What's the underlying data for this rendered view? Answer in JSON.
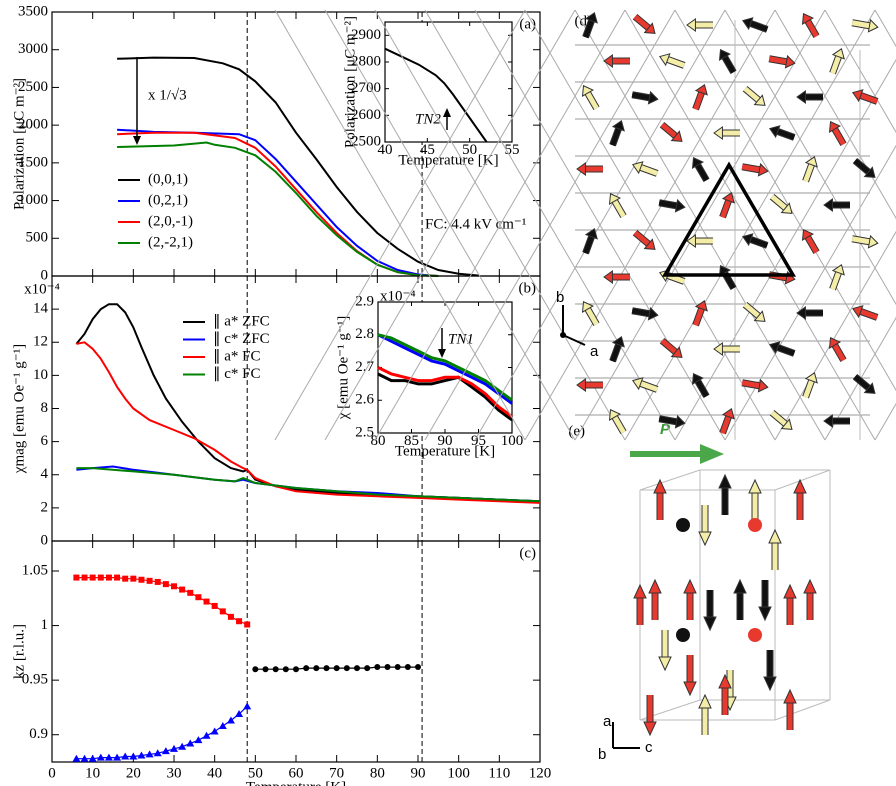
{
  "chart_data": [
    {
      "type": "line",
      "panel": "(a)",
      "ylabel": "Polarization [μC m⁻²]",
      "xlim": [
        0,
        120
      ],
      "xticks": [
        0,
        10,
        20,
        30,
        40,
        50,
        60,
        70,
        80,
        90,
        100,
        110,
        120
      ],
      "ylim": [
        0,
        3500
      ],
      "yticks": [
        0,
        500,
        1000,
        1500,
        2000,
        2500,
        3000,
        3500
      ],
      "vlines": [
        48,
        91
      ],
      "annotations": [
        "x 1/√3",
        "FC: 4.4 kV cm⁻¹"
      ],
      "series": [
        {
          "name": "(0,0,1)",
          "color": "#000000",
          "x": [
            16,
            25,
            35,
            42,
            46,
            50,
            55,
            60,
            65,
            70,
            75,
            80,
            85,
            90,
            95,
            100,
            105
          ],
          "values": [
            2880,
            2895,
            2890,
            2820,
            2740,
            2580,
            2300,
            1900,
            1550,
            1180,
            850,
            570,
            360,
            190,
            80,
            30,
            5
          ]
        },
        {
          "name": "(0,2,1)",
          "color": "#0000ff",
          "x": [
            16,
            25,
            35,
            46,
            50,
            55,
            60,
            65,
            70,
            75,
            80,
            85,
            90,
            95
          ],
          "values": [
            1940,
            1910,
            1900,
            1880,
            1800,
            1550,
            1250,
            950,
            650,
            400,
            200,
            80,
            20,
            0
          ]
        },
        {
          "name": "(2,0,-1)",
          "color": "#ff0000",
          "x": [
            16,
            25,
            35,
            45,
            50,
            55,
            60,
            65,
            70,
            75,
            80,
            85,
            90,
            95
          ],
          "values": [
            1880,
            1900,
            1900,
            1830,
            1700,
            1450,
            1150,
            850,
            570,
            330,
            150,
            50,
            10,
            0
          ]
        },
        {
          "name": "(2,-2,1)",
          "color": "#008000",
          "x": [
            16,
            30,
            38,
            40,
            45,
            50,
            55,
            60,
            65,
            70,
            75,
            80,
            85,
            90,
            95
          ],
          "values": [
            1710,
            1730,
            1770,
            1740,
            1700,
            1600,
            1380,
            1100,
            800,
            540,
            320,
            150,
            50,
            10,
            0
          ]
        }
      ]
    },
    {
      "type": "line",
      "panel": "(b)",
      "ylabel": "χmag [emu Oe⁻¹ g⁻¹]",
      "multiplier": "x10⁻⁴",
      "xlim": [
        0,
        120
      ],
      "xticks": [
        0,
        10,
        20,
        30,
        40,
        50,
        60,
        70,
        80,
        90,
        100,
        110,
        120
      ],
      "ylim": [
        0,
        16
      ],
      "yticks": [
        0,
        2,
        4,
        6,
        8,
        10,
        12,
        14
      ],
      "vlines": [
        48,
        91
      ],
      "series": [
        {
          "name": "∥ a* ZFC",
          "color": "#000000",
          "x": [
            6,
            8,
            10,
            12,
            14,
            16,
            18,
            20,
            22,
            25,
            28,
            32,
            36,
            40,
            44,
            47,
            48,
            50,
            55,
            60,
            70,
            80,
            90,
            100,
            110,
            120
          ],
          "values": [
            11.9,
            12.5,
            13.4,
            14.0,
            14.3,
            14.3,
            13.8,
            12.9,
            11.7,
            10.0,
            8.6,
            7.2,
            6.0,
            5.0,
            4.4,
            4.2,
            4.3,
            3.7,
            3.3,
            3.1,
            2.9,
            2.8,
            2.7,
            2.6,
            2.5,
            2.4
          ]
        },
        {
          "name": "∥ c* ZFC",
          "color": "#0000ff",
          "x": [
            6,
            10,
            15,
            20,
            30,
            40,
            45,
            47,
            50,
            60,
            70,
            80,
            90,
            100,
            110,
            120
          ],
          "values": [
            4.3,
            4.4,
            4.5,
            4.3,
            4.0,
            3.7,
            3.6,
            3.7,
            3.5,
            3.2,
            3.0,
            2.9,
            2.7,
            2.6,
            2.5,
            2.4
          ]
        },
        {
          "name": "∥ a* FC",
          "color": "#ff0000",
          "x": [
            6,
            8,
            10,
            12,
            14,
            16,
            18,
            20,
            24,
            30,
            35,
            40,
            44,
            47,
            48,
            50,
            55,
            60,
            70,
            80,
            90,
            100,
            110,
            120
          ],
          "values": [
            11.9,
            12.0,
            11.6,
            11.0,
            10.2,
            9.3,
            8.6,
            8.0,
            7.3,
            6.7,
            6.2,
            5.5,
            4.8,
            4.4,
            4.3,
            3.8,
            3.3,
            3.0,
            2.8,
            2.7,
            2.6,
            2.5,
            2.4,
            2.3
          ]
        },
        {
          "name": "∥ c* FC",
          "color": "#008000",
          "x": [
            6,
            10,
            20,
            30,
            40,
            45,
            47,
            50,
            60,
            70,
            80,
            90,
            100,
            110,
            120
          ],
          "values": [
            4.4,
            4.4,
            4.2,
            4.0,
            3.7,
            3.6,
            3.8,
            3.5,
            3.2,
            3.0,
            2.8,
            2.7,
            2.6,
            2.5,
            2.4
          ]
        }
      ]
    },
    {
      "type": "line",
      "panel": "(c)",
      "ylabel": "kz [r.l.u.]",
      "xlabel": "Temperature [K]",
      "xlim": [
        0,
        120
      ],
      "xticks": [
        0,
        10,
        20,
        30,
        40,
        50,
        60,
        70,
        80,
        90,
        100,
        110,
        120
      ],
      "ylim": [
        0.875,
        1.0775
      ],
      "yticks": [
        0.9,
        0.95,
        1,
        1.05
      ],
      "vlines": [
        48,
        91
      ],
      "series": [
        {
          "color": "#ff0000",
          "marker": "square",
          "x": [
            6,
            8,
            10,
            12,
            14,
            16,
            18,
            20,
            22,
            24,
            26,
            28,
            30,
            32,
            34,
            36,
            38,
            40,
            42,
            44,
            46,
            48
          ],
          "values": [
            1.044,
            1.044,
            1.044,
            1.044,
            1.044,
            1.044,
            1.043,
            1.043,
            1.042,
            1.041,
            1.04,
            1.038,
            1.036,
            1.033,
            1.03,
            1.026,
            1.022,
            1.018,
            1.013,
            1.008,
            1.004,
            1.001
          ]
        },
        {
          "color": "#0000ff",
          "marker": "triangle",
          "x": [
            6,
            8,
            10,
            12,
            14,
            16,
            18,
            20,
            22,
            24,
            26,
            28,
            30,
            32,
            34,
            36,
            38,
            40,
            42,
            44,
            46,
            48
          ],
          "values": [
            0.878,
            0.878,
            0.878,
            0.879,
            0.879,
            0.879,
            0.88,
            0.88,
            0.881,
            0.882,
            0.883,
            0.885,
            0.887,
            0.889,
            0.892,
            0.895,
            0.899,
            0.903,
            0.908,
            0.913,
            0.919,
            0.926
          ]
        },
        {
          "color": "#000000",
          "marker": "circle",
          "x": [
            50,
            52.5,
            55,
            57.5,
            60,
            62.5,
            65,
            67.5,
            70,
            72.5,
            75,
            77.5,
            80,
            82.5,
            85,
            87.5,
            90
          ],
          "values": [
            0.96,
            0.96,
            0.96,
            0.96,
            0.96,
            0.961,
            0.961,
            0.961,
            0.961,
            0.961,
            0.961,
            0.961,
            0.962,
            0.962,
            0.962,
            0.962,
            0.962
          ]
        }
      ]
    },
    {
      "type": "line",
      "ylabel": "Polarization [μC m⁻²]",
      "xlabel": "Temperature [K]",
      "xlim": [
        40,
        55
      ],
      "xticks": [
        40,
        45,
        50,
        55
      ],
      "ylim": [
        2500,
        2950
      ],
      "yticks": [
        2500,
        2600,
        2700,
        2800,
        2900
      ],
      "annotations": [
        "TN2"
      ],
      "series": [
        {
          "color": "#000000",
          "x": [
            40,
            42,
            44,
            46,
            47,
            48,
            50,
            52
          ],
          "values": [
            2850,
            2820,
            2790,
            2750,
            2720,
            2680,
            2590,
            2500
          ]
        }
      ]
    },
    {
      "type": "line",
      "ylabel": "χ [emu Oe⁻¹ g⁻¹]",
      "xlabel": "Temperature [K]",
      "multiplier": "x10⁻⁴",
      "xlim": [
        80,
        100
      ],
      "xticks": [
        80,
        85,
        90,
        95,
        100
      ],
      "ylim": [
        2.5,
        2.9
      ],
      "yticks": [
        2.5,
        2.6,
        2.7,
        2.8,
        2.9
      ],
      "annotations": [
        "TN1"
      ],
      "series": [
        {
          "color": "#000000",
          "x": [
            80,
            82,
            84,
            86,
            88,
            90,
            92,
            94,
            96,
            98,
            100
          ],
          "values": [
            2.68,
            2.66,
            2.66,
            2.65,
            2.65,
            2.66,
            2.67,
            2.64,
            2.61,
            2.57,
            2.54
          ]
        },
        {
          "color": "#ff0000",
          "x": [
            80,
            82,
            84,
            86,
            88,
            90,
            92,
            94,
            96,
            98,
            100
          ],
          "values": [
            2.7,
            2.68,
            2.67,
            2.66,
            2.66,
            2.67,
            2.67,
            2.65,
            2.62,
            2.58,
            2.55
          ]
        },
        {
          "color": "#0000ff",
          "x": [
            80,
            82,
            84,
            86,
            88,
            90,
            92,
            94,
            96,
            98,
            100
          ],
          "values": [
            2.8,
            2.78,
            2.76,
            2.74,
            2.72,
            2.71,
            2.69,
            2.67,
            2.65,
            2.62,
            2.59
          ]
        },
        {
          "color": "#008000",
          "x": [
            80,
            82,
            84,
            86,
            88,
            90,
            92,
            94,
            96,
            98,
            100
          ],
          "values": [
            2.8,
            2.79,
            2.77,
            2.75,
            2.73,
            2.72,
            2.7,
            2.68,
            2.66,
            2.63,
            2.6
          ]
        }
      ]
    }
  ],
  "structure": {
    "d_label": "(d)",
    "e_label": "(e)",
    "p_label": "P",
    "axes_d": [
      "b",
      "a"
    ],
    "axes_e": [
      "a",
      "b",
      "c"
    ]
  }
}
